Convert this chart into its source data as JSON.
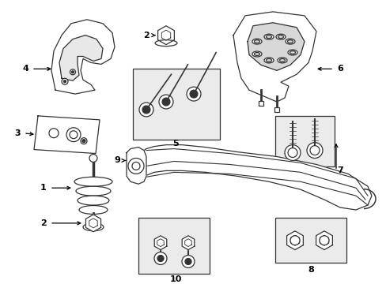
{
  "bg_color": "#ffffff",
  "line_color": "#333333",
  "box_fill": "#ebebeb"
}
